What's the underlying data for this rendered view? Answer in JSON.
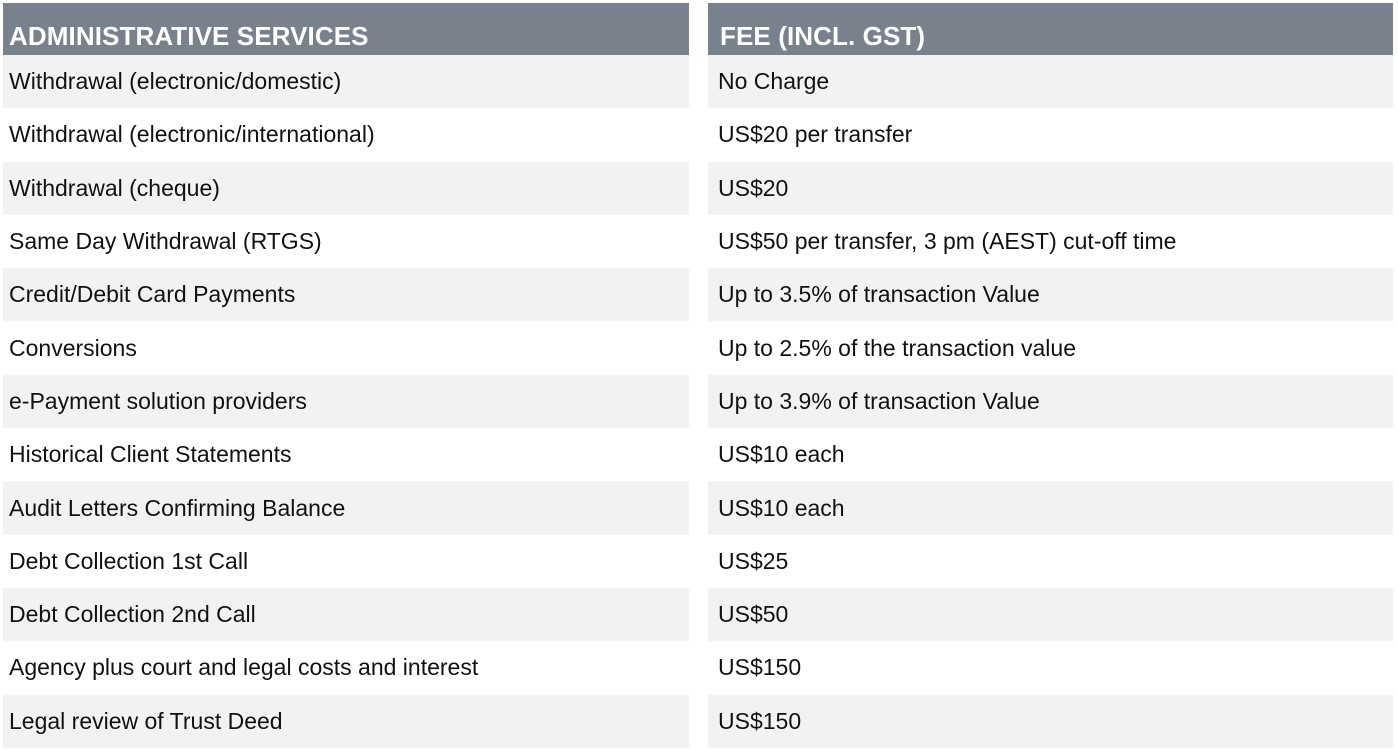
{
  "table": {
    "headers": [
      "ADMINISTRATIVE SERVICES",
      "FEE (INCL. GST)"
    ],
    "rows": [
      [
        "Withdrawal (electronic/domestic)",
        "No Charge"
      ],
      [
        "Withdrawal (electronic/international)",
        "US$20 per transfer"
      ],
      [
        "Withdrawal (cheque)",
        "US$20"
      ],
      [
        "Same Day Withdrawal (RTGS)",
        "US$50 per transfer, 3 pm (AEST) cut-off time"
      ],
      [
        "Credit/Debit Card Payments",
        "Up to 3.5% of transaction Value"
      ],
      [
        "Conversions",
        "Up to 2.5% of the transaction value"
      ],
      [
        "e-Payment solution providers",
        "Up to 3.9% of transaction Value"
      ],
      [
        "Historical Client Statements",
        "US$10 each"
      ],
      [
        "Audit Letters Confirming Balance",
        "US$10 each"
      ],
      [
        "Debt Collection 1st Call",
        "US$25"
      ],
      [
        "Debt Collection 2nd Call",
        "US$50"
      ],
      [
        "Agency plus court and legal costs and interest",
        "US$150"
      ],
      [
        "Legal review of Trust Deed",
        "US$150"
      ]
    ]
  },
  "colors": {
    "header_background": "#79818d",
    "header_text": "#ffffff",
    "shaded_row": "#f2f2f0",
    "body_text": "#111111"
  }
}
